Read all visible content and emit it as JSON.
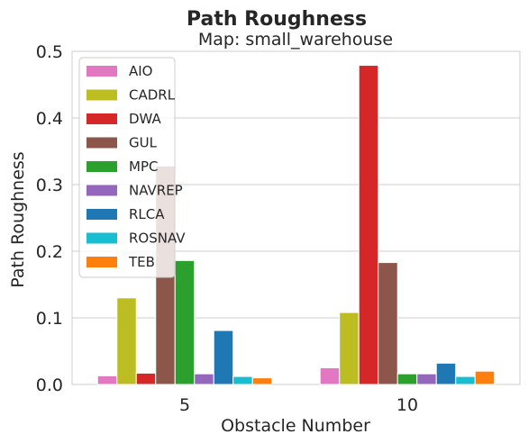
{
  "chart_data": {
    "type": "bar",
    "title": "Path Roughness",
    "subtitle": "Map: small_warehouse",
    "xlabel": "Obstacle Number",
    "ylabel": "Path Roughness",
    "categories": [
      "5",
      "10"
    ],
    "ylim": [
      0,
      0.5
    ],
    "yticks": [
      "0.0",
      "0.1",
      "0.2",
      "0.3",
      "0.4",
      "0.5"
    ],
    "grid": true,
    "legend_position": "upper-left",
    "series": [
      {
        "name": "AIO",
        "color": "#e377c2",
        "values": [
          0.013,
          0.025
        ]
      },
      {
        "name": "CADRL",
        "color": "#bcbd22",
        "values": [
          0.13,
          0.108
        ]
      },
      {
        "name": "DWA",
        "color": "#d62728",
        "values": [
          0.017,
          0.479
        ]
      },
      {
        "name": "GUL",
        "color": "#8c564b",
        "values": [
          0.328,
          0.183
        ]
      },
      {
        "name": "MPC",
        "color": "#2ca02c",
        "values": [
          0.186,
          0.016
        ]
      },
      {
        "name": "NAVREP",
        "color": "#9467bd",
        "values": [
          0.016,
          0.016
        ]
      },
      {
        "name": "RLCA",
        "color": "#1f77b4",
        "values": [
          0.081,
          0.032
        ]
      },
      {
        "name": "ROSNAV",
        "color": "#17becf",
        "values": [
          0.012,
          0.012
        ]
      },
      {
        "name": "TEB",
        "color": "#ff7f0e",
        "values": [
          0.01,
          0.02
        ]
      }
    ]
  }
}
